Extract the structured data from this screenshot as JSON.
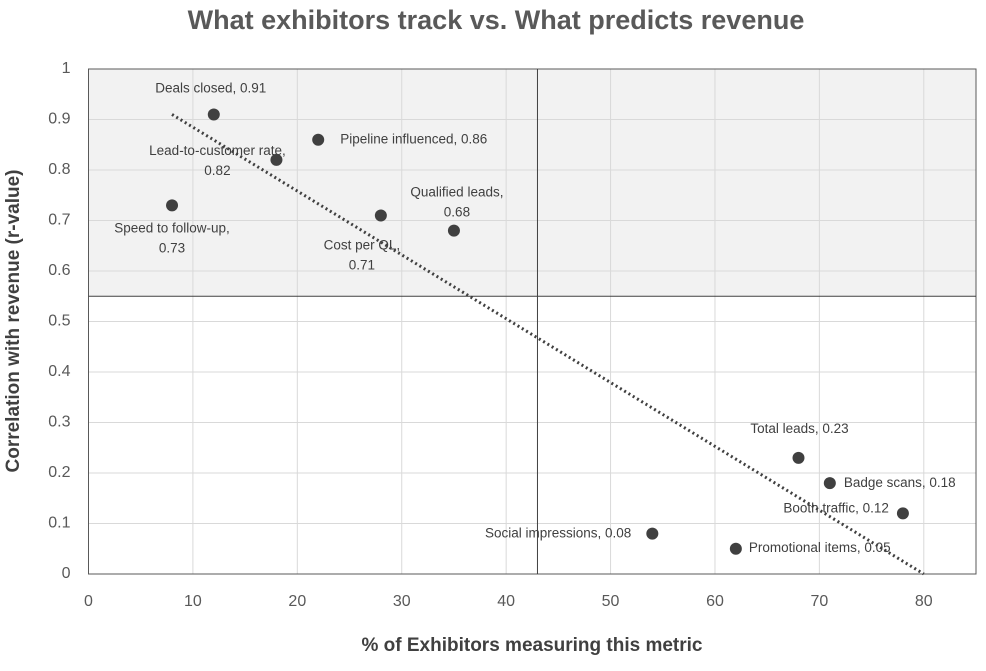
{
  "chart_data": {
    "type": "scatter",
    "title": "What exhibitors track vs. What predicts revenue",
    "x_label": "% of Exhibitors measuring this metric",
    "y_label": "Correlation with revenue (r-value)",
    "labels": [
      "Deals closed, 0.91",
      "Pipeline influenced, 0.86",
      "Lead-to-customer rate,\n0.82",
      "Speed to follow-up,\n0.73",
      "Cost per QL,\n0.71",
      "Qualified leads,\n0.68",
      "Total leads, 0.23",
      "Badge scans, 0.18",
      "Booth traffic, 0.12",
      "Social impressions, 0.08",
      "Promotional items, 0.05"
    ],
    "x": [
      12,
      22,
      18,
      8,
      28,
      35,
      68,
      71,
      78,
      54,
      62
    ],
    "values": [
      0.91,
      0.86,
      0.82,
      0.73,
      0.71,
      0.68,
      0.23,
      0.18,
      0.12,
      0.08,
      0.05
    ],
    "color": "#404040",
    "trendline": {
      "x": [
        8,
        80
      ],
      "y": [
        0.91,
        0
      ]
    },
    "reference_lines": {
      "x": 43,
      "y": 0.55
    },
    "xlim": [
      0,
      85
    ],
    "xticks": [
      0,
      10,
      20,
      30,
      40,
      50,
      60,
      70,
      80
    ],
    "ylim": [
      0,
      1
    ],
    "yticks": [
      0,
      0.1,
      0.2,
      0.3,
      0.4,
      0.5,
      0.6,
      0.7,
      0.8,
      0.9,
      1
    ],
    "grid": true
  }
}
